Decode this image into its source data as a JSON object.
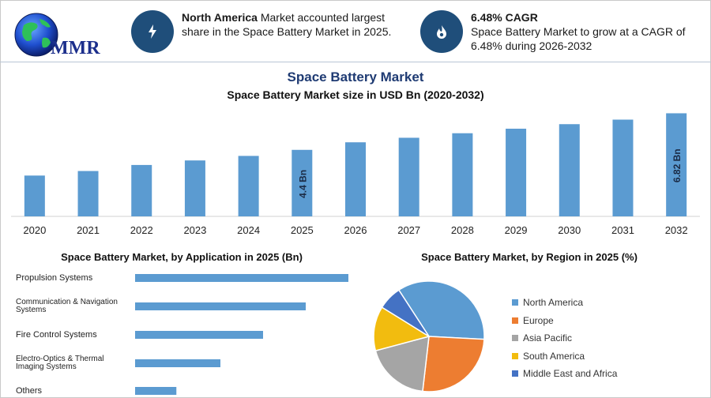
{
  "logo": {
    "text": "MMR",
    "icon": "globe-icon"
  },
  "info_cards": [
    {
      "icon": "lightning-icon",
      "bold": "North America",
      "text": " Market accounted largest share in the Space Battery Market in 2025."
    },
    {
      "icon": "flame-drop-icon",
      "bold": "6.48% CAGR",
      "text": "Space Battery Market to grow at a CAGR of 6.48% during 2026-2032"
    }
  ],
  "header": {
    "title": "Space Battery Market",
    "subtitle": "Space Battery Market size in USD Bn (2020-2032)"
  },
  "colors": {
    "bar": "#5b9bd1",
    "accent_dark": "#1f4e7a",
    "title": "#1f3b73"
  },
  "chart_data": [
    {
      "type": "bar",
      "title": "Space Battery Market size in USD Bn (2020-2032)",
      "categories": [
        "2020",
        "2021",
        "2022",
        "2023",
        "2024",
        "2025",
        "2026",
        "2027",
        "2028",
        "2029",
        "2030",
        "2031",
        "2032"
      ],
      "values": [
        2.7,
        3.0,
        3.4,
        3.7,
        4.0,
        4.4,
        4.9,
        5.2,
        5.5,
        5.8,
        6.1,
        6.4,
        6.82
      ],
      "data_labels": {
        "2025": "4.4 Bn",
        "2032": "6.82 Bn"
      },
      "ylim": [
        0,
        7.0
      ],
      "grid": false
    },
    {
      "type": "bar",
      "orientation": "horizontal",
      "title": "Space Battery Market, by Application in 2025 (Bn)",
      "categories": [
        "Propulsion Systems",
        "Communication & Navigation Systems",
        "Fire Control Systems",
        "Electro-Optics & Thermal Imaging Systems",
        "Others"
      ],
      "values": [
        1.55,
        1.24,
        0.93,
        0.62,
        0.3
      ],
      "xlim": [
        0,
        1.6
      ],
      "grid": false
    },
    {
      "type": "pie",
      "title": "Space Battery Market, by Region in 2025 (%)",
      "labels": [
        "North America",
        "Europe",
        "Asia Pacific",
        "South America",
        "Middle East and Africa"
      ],
      "values": [
        35,
        26,
        19,
        13,
        7
      ],
      "colors": [
        "#5b9bd1",
        "#ed7d31",
        "#a5a5a5",
        "#f2bc0f",
        "#4472c4"
      ],
      "legend_position": "right"
    }
  ]
}
